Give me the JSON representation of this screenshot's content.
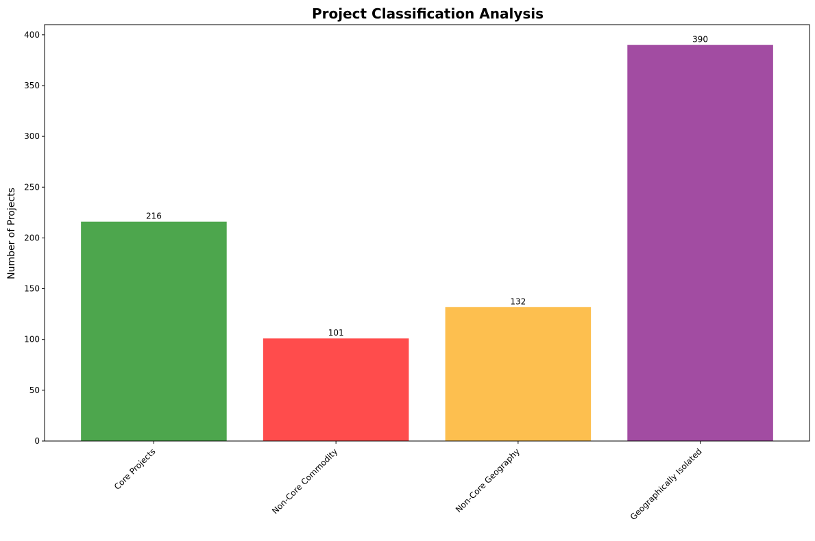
{
  "chart_data": {
    "type": "bar",
    "title": "Project Classification Analysis",
    "xlabel": "",
    "ylabel": "Number of Projects",
    "categories": [
      "Core Projects",
      "Non-Core Commodity",
      "Non-Core Geography",
      "Geographically Isolated"
    ],
    "values": [
      216,
      101,
      132,
      390
    ],
    "value_labels": [
      "216",
      "101",
      "132",
      "390"
    ],
    "colors": [
      "#4da64d",
      "#ff4c4c",
      "#fdbf4f",
      "#a24ca2"
    ],
    "ylim": [
      0,
      410
    ],
    "yticks": [
      0,
      50,
      100,
      150,
      200,
      250,
      300,
      350,
      400
    ],
    "ytick_labels": [
      "0",
      "50",
      "100",
      "150",
      "200",
      "250",
      "300",
      "350",
      "400"
    ],
    "grid": false,
    "legend": "none"
  }
}
